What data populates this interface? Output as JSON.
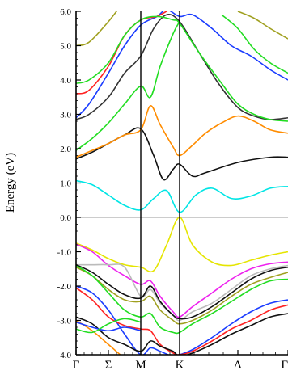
{
  "chart_data": {
    "type": "line",
    "title": "",
    "xlabel": "",
    "ylabel": "Energy (eV)",
    "ylim": [
      -4.0,
      6.0
    ],
    "xlim": [
      0,
      6.55
    ],
    "grid": false,
    "legend": "none",
    "y_ticks": [
      "6.0",
      "5.0",
      "4.0",
      "3.0",
      "2.0",
      "1.0",
      "0.0",
      "-1.0",
      "-2.0",
      "-3.0",
      "-4.0"
    ],
    "y_tick_values": [
      6,
      5,
      4,
      3,
      2,
      1,
      0,
      -1,
      -2,
      -3,
      -4
    ],
    "k_points": [
      {
        "label": "Γ",
        "x": 0
      },
      {
        "label": "Σ",
        "x": 1
      },
      {
        "label": "M",
        "x": 2
      },
      {
        "label": "K",
        "x": 3.2
      },
      {
        "label": "Λ",
        "x": 5
      },
      {
        "label": "Γ",
        "x": 6.55
      }
    ],
    "symmetry_lines": [
      2,
      3.2
    ],
    "fermi_level": 0.0,
    "series": [
      {
        "color": "#00e5e5",
        "x": [
          0,
          0.5,
          1,
          1.5,
          2,
          2.4,
          2.8,
          3.2,
          3.7,
          4.2,
          4.8,
          5.4,
          6.0,
          6.55
        ],
        "y": [
          1.07,
          0.95,
          0.65,
          0.35,
          0.22,
          0.55,
          0.78,
          0.15,
          0.65,
          0.85,
          0.55,
          0.62,
          0.85,
          0.9
        ]
      },
      {
        "color": "#111111",
        "x": [
          0,
          0.5,
          1,
          1.5,
          2,
          2.4,
          2.7,
          3.0,
          3.2,
          3.6,
          4.0,
          5.0,
          6.0,
          6.55
        ],
        "y": [
          1.7,
          1.9,
          2.15,
          2.4,
          2.58,
          1.8,
          1.1,
          1.4,
          1.55,
          1.2,
          1.3,
          1.6,
          1.75,
          1.75
        ]
      },
      {
        "color": "#ff8c00",
        "x": [
          0,
          0.5,
          1,
          1.5,
          2,
          2.3,
          2.6,
          3.0,
          3.2,
          3.6,
          4.0,
          4.5,
          5.0,
          5.5,
          6.0,
          6.55
        ],
        "y": [
          1.75,
          1.95,
          2.15,
          2.4,
          2.55,
          3.25,
          2.7,
          2.05,
          1.8,
          2.1,
          2.45,
          2.75,
          2.95,
          2.8,
          2.55,
          2.45
        ]
      },
      {
        "color": "#22dd22",
        "x": [
          0,
          0.5,
          1,
          1.5,
          2,
          2.3,
          2.6,
          3.0,
          3.2
        ],
        "y": [
          1.95,
          2.3,
          2.75,
          3.3,
          3.82,
          3.5,
          4.4,
          5.35,
          5.7
        ]
      },
      {
        "color": "#333333",
        "x": [
          0,
          0.4,
          1,
          1.5,
          2,
          2.4,
          2.8,
          3.2,
          3.8,
          4.4,
          5.0,
          5.5,
          6.0,
          6.55
        ],
        "y": [
          2.85,
          3.0,
          3.5,
          4.2,
          4.7,
          5.5,
          5.9,
          5.7,
          4.8,
          3.9,
          3.2,
          2.95,
          2.85,
          2.9
        ]
      },
      {
        "color": "#1a3cff",
        "x": [
          0,
          0.4,
          1,
          1.5,
          2,
          2.5,
          2.8,
          3.2,
          3.6,
          4.2,
          4.8,
          5.4,
          6.0,
          6.55
        ],
        "y": [
          2.9,
          3.3,
          4.2,
          5.0,
          5.6,
          5.85,
          6.05,
          5.85,
          5.9,
          5.5,
          5.0,
          4.7,
          4.3,
          4.0
        ]
      },
      {
        "color": "#ff2222",
        "x": [
          0,
          0.4,
          1,
          1.5,
          2,
          2.5,
          2.9,
          3.2
        ],
        "y": [
          3.6,
          3.7,
          4.4,
          5.3,
          5.75,
          5.85,
          6.05,
          6.1
        ]
      },
      {
        "color": "#22dd22",
        "x": [
          0,
          0.4,
          1,
          1.5,
          2,
          2.5,
          3.0,
          3.2,
          3.8,
          4.5,
          5.0,
          5.5,
          6.0,
          6.55
        ],
        "y": [
          3.9,
          4.0,
          4.5,
          5.3,
          5.75,
          5.85,
          5.75,
          5.65,
          4.8,
          3.9,
          3.3,
          3.0,
          2.85,
          2.8
        ]
      },
      {
        "color": "#a0a020",
        "x": [
          0,
          0.4,
          1,
          1.5,
          2,
          2.4,
          2.8,
          3.2
        ],
        "y": [
          5.0,
          5.1,
          5.7,
          6.3,
          6.8,
          6.5,
          6.2,
          6.0
        ]
      },
      {
        "color": "#22dd22",
        "x": [
          4.5,
          5.0,
          5.5,
          6.0,
          6.55
        ],
        "y": [
          5.9,
          5.5,
          4.9,
          4.5,
          4.2
        ]
      },
      {
        "color": "#a0a020",
        "x": [
          5.0,
          5.5,
          6.0,
          6.55
        ],
        "y": [
          6.0,
          5.8,
          5.5,
          5.2
        ]
      },
      {
        "color": "#e5e500",
        "x": [
          0,
          0.5,
          1,
          1.5,
          2,
          2.4,
          2.8,
          3.2,
          3.6,
          4.2,
          4.8,
          5.4,
          6.0,
          6.55
        ],
        "y": [
          -0.75,
          -0.95,
          -1.2,
          -1.38,
          -1.45,
          -1.55,
          -0.8,
          0.0,
          -0.8,
          -1.3,
          -1.4,
          -1.25,
          -1.1,
          -1.0
        ]
      },
      {
        "color": "#ee22ee",
        "x": [
          0,
          0.5,
          1,
          1.5,
          2,
          2.3,
          2.6,
          3.0,
          3.2,
          3.6,
          4.2,
          4.8,
          5.4,
          6.0,
          6.55
        ],
        "y": [
          -0.78,
          -1.0,
          -1.4,
          -1.7,
          -1.95,
          -1.85,
          -2.3,
          -2.75,
          -2.9,
          -2.6,
          -2.2,
          -1.8,
          -1.5,
          -1.35,
          -1.3
        ]
      },
      {
        "color": "#bbbbbb",
        "x": [
          0,
          0.5,
          1,
          1.5,
          2,
          2.3,
          2.6,
          3.0,
          3.2,
          3.6,
          4.2,
          4.8,
          5.4,
          6.0,
          6.55
        ],
        "y": [
          -1.38,
          -1.38,
          -1.38,
          -1.45,
          -2.3,
          -2.1,
          -2.5,
          -2.85,
          -3.0,
          -2.75,
          -2.5,
          -2.1,
          -1.7,
          -1.5,
          -1.4
        ]
      },
      {
        "color": "#111111",
        "x": [
          0,
          0.5,
          1,
          1.5,
          2,
          2.3,
          2.6,
          3.0,
          3.2,
          3.6,
          4.2,
          4.8,
          5.4,
          6.0,
          6.55
        ],
        "y": [
          -1.38,
          -1.6,
          -1.95,
          -2.25,
          -2.35,
          -2.0,
          -2.45,
          -2.85,
          -2.95,
          -2.9,
          -2.6,
          -2.2,
          -1.8,
          -1.55,
          -1.45
        ]
      },
      {
        "color": "#a0a020",
        "x": [
          0,
          0.5,
          1,
          1.5,
          2,
          2.3,
          2.6,
          3.0,
          3.2,
          3.6,
          4.2,
          4.8,
          5.4,
          6.0,
          6.55
        ],
        "y": [
          -1.45,
          -1.7,
          -2.1,
          -2.4,
          -2.45,
          -2.3,
          -2.7,
          -3.0,
          -3.1,
          -3.0,
          -2.7,
          -2.3,
          -1.95,
          -1.75,
          -1.6
        ]
      },
      {
        "color": "#22dd22",
        "x": [
          0,
          0.5,
          1,
          1.5,
          2,
          2.3,
          2.6,
          3.0,
          3.2,
          3.6,
          4.2,
          4.8,
          5.4,
          6.0,
          6.55
        ],
        "y": [
          -1.4,
          -1.7,
          -2.2,
          -2.7,
          -2.9,
          -2.8,
          -3.2,
          -3.35,
          -3.35,
          -3.1,
          -2.8,
          -2.45,
          -2.1,
          -1.85,
          -1.8
        ]
      },
      {
        "color": "#1a3cff",
        "x": [
          0,
          0.5,
          1,
          1.5,
          2,
          2.3,
          2.6,
          3.0,
          3.2,
          3.6,
          4.2,
          4.8,
          5.4,
          6.0,
          6.55
        ],
        "y": [
          -2.0,
          -2.2,
          -2.7,
          -3.4,
          -4.0,
          -3.8,
          -3.9,
          -4.05,
          -4.0,
          -3.85,
          -3.5,
          -3.1,
          -2.75,
          -2.5,
          -2.4
        ]
      },
      {
        "color": "#ff2222",
        "x": [
          0,
          0.5,
          1,
          1.5,
          2,
          2.3,
          2.6,
          3.0,
          3.2,
          3.6,
          4.2,
          4.8,
          5.4,
          6.0,
          6.55
        ],
        "y": [
          -2.05,
          -2.4,
          -2.9,
          -3.15,
          -3.25,
          -3.3,
          -3.7,
          -3.95,
          -4.0,
          -3.9,
          -3.6,
          -3.25,
          -3.0,
          -2.7,
          -2.55
        ]
      },
      {
        "color": "#111111",
        "x": [
          0,
          0.5,
          1,
          1.5,
          2,
          2.3,
          2.6,
          3.0,
          3.2,
          3.6,
          4.2,
          4.8,
          5.4,
          6.0,
          6.55
        ],
        "y": [
          -2.9,
          -3.1,
          -3.5,
          -3.7,
          -3.9,
          -3.6,
          -3.75,
          -3.9,
          -4.05,
          -3.95,
          -3.7,
          -3.4,
          -3.15,
          -2.9,
          -2.8
        ]
      },
      {
        "color": "#ff8c00",
        "x": [
          0,
          0.5,
          1,
          1.5,
          2
        ],
        "y": [
          -3.0,
          -3.3,
          -3.7,
          -4.1,
          -4.4
        ]
      },
      {
        "color": "#1a3cff",
        "x": [
          0,
          0.5,
          1,
          1.5,
          2
        ],
        "y": [
          -3.05,
          -3.2,
          -3.3,
          -3.2,
          -3.3
        ]
      },
      {
        "color": "#22dd22",
        "x": [
          0,
          0.5,
          1,
          1.5,
          2
        ],
        "y": [
          -3.25,
          -3.35,
          -3.1,
          -2.95,
          -3.05
        ]
      }
    ]
  }
}
